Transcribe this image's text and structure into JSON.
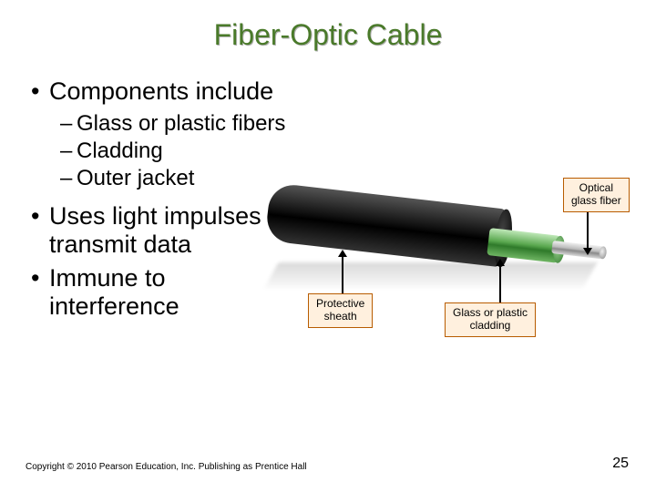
{
  "title": "Fiber-Optic Cable",
  "bullets": {
    "b1": "Components include",
    "b1_sub1": "Glass or plastic fibers",
    "b1_sub2": "Cladding",
    "b1_sub3": "Outer jacket",
    "b2": "Uses light impulses to transmit data",
    "b3": "Immune to interference"
  },
  "diagram": {
    "label_sheath_l1": "Protective",
    "label_sheath_l2": "sheath",
    "label_cladding_l1": "Glass or plastic",
    "label_cladding_l2": "cladding",
    "label_fiber_l1": "Optical",
    "label_fiber_l2": "glass fiber",
    "colors": {
      "sheath": "#111111",
      "cladding": "#5aa84f",
      "fiber": "#bcbcbc",
      "label_border": "#b85c00",
      "label_bg": "#fff0de"
    }
  },
  "copyright": "Copyright © 2010 Pearson Education, Inc. Publishing as Prentice Hall",
  "page_number": "25",
  "title_color": "#4a7a2a"
}
